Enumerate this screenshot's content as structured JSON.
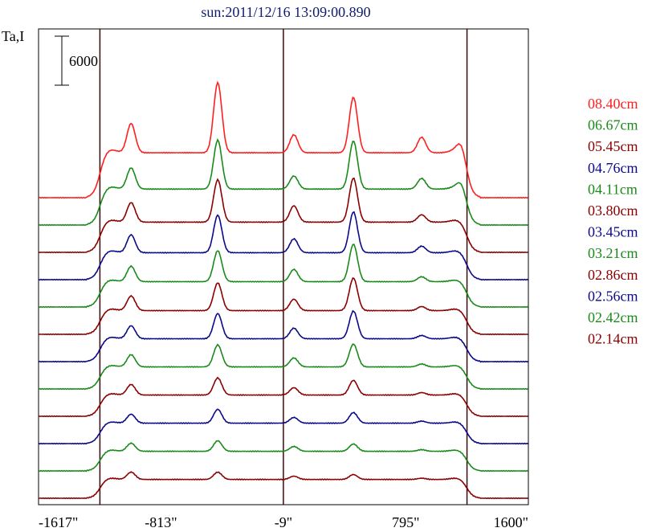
{
  "chart_data": {
    "type": "line",
    "title": "sun:2011/12/16 13:09:00.890",
    "ylabel": "Ta,I",
    "scale_bar_label": "6000",
    "x_tick_labels": [
      "-1617\"",
      "-813\"",
      "-9\"",
      "795\"",
      "1600\""
    ],
    "x_ticks": [
      -1617,
      -813,
      -9,
      795,
      1600
    ],
    "xlim": [
      -1617,
      1600
    ],
    "vertical_lines": [
      -1214,
      -9,
      1197
    ],
    "grid": false,
    "legend_placement": "right",
    "series": [
      {
        "name": "08.40cm",
        "color": "#ff1f1f",
        "offset_units": 11,
        "peaks": [
          [
            -1009,
            3600
          ],
          [
            -440,
            8600
          ],
          [
            60,
            2200
          ],
          [
            451,
            6800
          ],
          [
            899,
            1900
          ],
          [
            1160,
            1200
          ]
        ],
        "base": 5500,
        "wing": 9000
      },
      {
        "name": "06.67cm",
        "color": "#1a8a1a",
        "offset_units": 10,
        "peaks": [
          [
            -1009,
            2600
          ],
          [
            -440,
            6000
          ],
          [
            60,
            1600
          ],
          [
            451,
            5900
          ],
          [
            899,
            1300
          ],
          [
            1160,
            900
          ]
        ],
        "base": 4400,
        "wing": 7000
      },
      {
        "name": "05.45cm",
        "color": "#8b0000",
        "offset_units": 9,
        "peaks": [
          [
            -1009,
            2400
          ],
          [
            -440,
            5200
          ],
          [
            60,
            2000
          ],
          [
            451,
            5400
          ],
          [
            899,
            900
          ]
        ],
        "base": 3700,
        "wing": 6000
      },
      {
        "name": "04.76cm",
        "color": "#0a0a8a",
        "offset_units": 8,
        "peaks": [
          [
            -1009,
            2200
          ],
          [
            -440,
            4600
          ],
          [
            60,
            1700
          ],
          [
            451,
            5000
          ],
          [
            899,
            800
          ]
        ],
        "base": 3300,
        "wing": 5500
      },
      {
        "name": "04.11cm",
        "color": "#1a8a1a",
        "offset_units": 7,
        "peaks": [
          [
            -1009,
            1900
          ],
          [
            -440,
            3800
          ],
          [
            60,
            1500
          ],
          [
            451,
            4600
          ],
          [
            899,
            600
          ]
        ],
        "base": 3100,
        "wing": 5000
      },
      {
        "name": "03.80cm",
        "color": "#8b0000",
        "offset_units": 6,
        "peaks": [
          [
            -1009,
            1800
          ],
          [
            -440,
            3400
          ],
          [
            60,
            1400
          ],
          [
            451,
            4000
          ],
          [
            899,
            500
          ]
        ],
        "base": 2900,
        "wing": 4800
      },
      {
        "name": "03.45cm",
        "color": "#0a0a8a",
        "offset_units": 5,
        "peaks": [
          [
            -1009,
            1600
          ],
          [
            -440,
            3100
          ],
          [
            60,
            1300
          ],
          [
            451,
            3400
          ],
          [
            899,
            400
          ]
        ],
        "base": 2800,
        "wing": 4600
      },
      {
        "name": "03.21cm",
        "color": "#1a8a1a",
        "offset_units": 4,
        "peaks": [
          [
            -1009,
            1500
          ],
          [
            -440,
            2700
          ],
          [
            60,
            1100
          ],
          [
            451,
            2800
          ],
          [
            899,
            350
          ]
        ],
        "base": 2700,
        "wing": 4400
      },
      {
        "name": "02.86cm",
        "color": "#8b0000",
        "offset_units": 3,
        "peaks": [
          [
            -1009,
            1300
          ],
          [
            -440,
            2100
          ],
          [
            60,
            900
          ],
          [
            451,
            1800
          ],
          [
            899,
            300
          ]
        ],
        "base": 2600,
        "wing": 4200
      },
      {
        "name": "02.56cm",
        "color": "#0a0a8a",
        "offset_units": 2,
        "peaks": [
          [
            -1009,
            1100
          ],
          [
            -440,
            1700
          ],
          [
            60,
            700
          ],
          [
            451,
            1300
          ],
          [
            899,
            250
          ]
        ],
        "base": 2500,
        "wing": 4000
      },
      {
        "name": "02.42cm",
        "color": "#1a8a1a",
        "offset_units": 1,
        "peaks": [
          [
            -1009,
            1000
          ],
          [
            -440,
            1300
          ],
          [
            60,
            600
          ],
          [
            451,
            900
          ],
          [
            899,
            200
          ]
        ],
        "base": 2400,
        "wing": 3900
      },
      {
        "name": "02.14cm",
        "color": "#8b0000",
        "offset_units": 0,
        "peaks": [
          [
            -1009,
            900
          ],
          [
            -440,
            900
          ],
          [
            60,
            400
          ],
          [
            451,
            600
          ],
          [
            899,
            150
          ]
        ],
        "base": 2300,
        "wing": 3800
      }
    ]
  }
}
